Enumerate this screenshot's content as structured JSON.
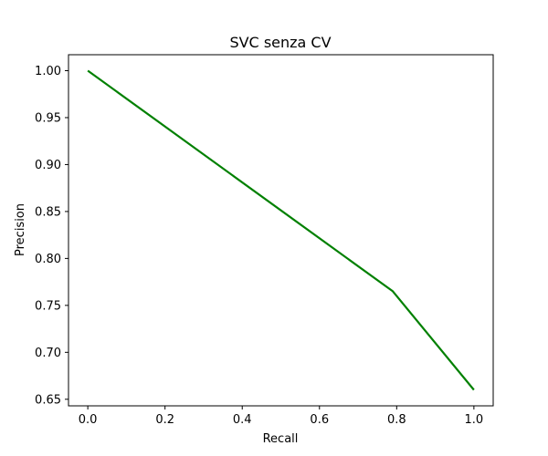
{
  "chart_data": {
    "type": "line",
    "title": "SVC senza CV",
    "xlabel": "Recall",
    "ylabel": "Precision",
    "xlim": [
      -0.05,
      1.05
    ],
    "ylim": [
      0.643,
      1.017
    ],
    "x_ticks": [
      0.0,
      0.2,
      0.4,
      0.6,
      0.8,
      1.0
    ],
    "x_tick_labels": [
      "0.0",
      "0.2",
      "0.4",
      "0.6",
      "0.8",
      "1.0"
    ],
    "y_ticks": [
      0.65,
      0.7,
      0.75,
      0.8,
      0.85,
      0.9,
      0.95,
      1.0
    ],
    "y_tick_labels": [
      "0.65",
      "0.70",
      "0.75",
      "0.80",
      "0.85",
      "0.90",
      "0.95",
      "1.00"
    ],
    "grid": false,
    "series": [
      {
        "color": "#008000",
        "x": [
          0.0,
          0.79,
          1.0
        ],
        "y": [
          1.0,
          0.765,
          0.66
        ]
      }
    ]
  }
}
